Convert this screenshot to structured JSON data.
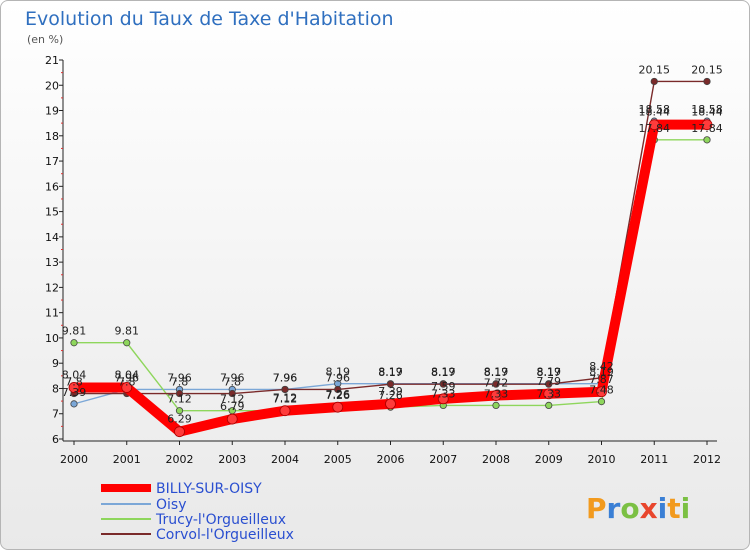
{
  "chart_data": {
    "type": "line",
    "title": "Evolution du Taux de Taxe d'Habitation",
    "subtitle": "(en %)",
    "categories": [
      "2000",
      "2001",
      "2002",
      "2003",
      "2004",
      "2005",
      "2006",
      "2007",
      "2008",
      "2009",
      "2010",
      "2011",
      "2012"
    ],
    "ylim": [
      6,
      21
    ],
    "yticks": [
      6,
      7,
      8,
      9,
      10,
      11,
      12,
      13,
      14,
      15,
      16,
      17,
      18,
      19,
      20,
      21
    ],
    "grid": false,
    "series": [
      {
        "name": "BILLY-SUR-OISY",
        "color": "#ff0000",
        "values": [
          8.04,
          8.04,
          6.29,
          6.79,
          7.12,
          7.26,
          7.39,
          7.59,
          7.72,
          7.79,
          7.87,
          18.44,
          18.44
        ],
        "labels": [
          "8.04",
          "8.04",
          "6.29",
          "6.79",
          "7.12",
          "7.26",
          "7.39",
          "7.59",
          "7.72",
          "7.79",
          "7.87",
          "18.44",
          "18.44"
        ]
      },
      {
        "name": "Oisy",
        "color": "#7ba7d7",
        "values": [
          7.39,
          7.96,
          7.96,
          7.96,
          7.96,
          8.19,
          8.19,
          8.19,
          8.19,
          8.19,
          8.19,
          18.58,
          18.58
        ],
        "labels": [
          "7.39",
          "7.96",
          "7.96",
          "7.96",
          "7.96",
          "8.19",
          "8.19",
          "8.19",
          "8.19",
          "8.19",
          "8.19",
          "18.58",
          "18.58"
        ]
      },
      {
        "name": "Trucy-l'Orgueilleux",
        "color": "#8ed65c",
        "values": [
          9.81,
          9.81,
          7.12,
          7.12,
          7.12,
          7.26,
          7.26,
          7.33,
          7.33,
          7.33,
          7.48,
          17.84,
          17.84
        ],
        "labels": [
          "9.81",
          "9.81",
          "7.12",
          "7.12",
          "7.12",
          "7.26",
          "7.26",
          "7.33",
          "7.33",
          "7.33",
          "7.48",
          "17.84",
          "17.84"
        ]
      },
      {
        "name": "Corvol-l'Orgueilleux",
        "color": "#7a2a2a",
        "values": [
          7.8,
          7.8,
          7.8,
          7.8,
          7.96,
          7.96,
          8.17,
          8.17,
          8.17,
          8.17,
          8.42,
          20.15,
          20.15
        ],
        "labels": [
          "7.8",
          "7.8",
          "7.8",
          "7.8",
          "7.96",
          "7.96",
          "8.17",
          "8.17",
          "8.17",
          "8.17",
          "8.42",
          "20.15",
          "20.15"
        ]
      }
    ],
    "legend_position": "bottom-left"
  },
  "logo": {
    "text": "Proxiti"
  }
}
